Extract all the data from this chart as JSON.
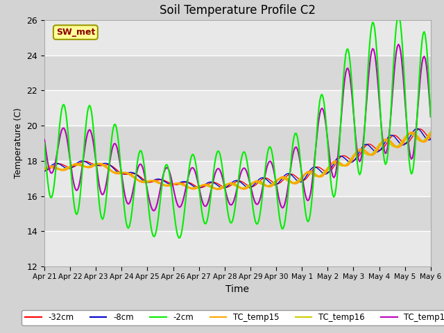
{
  "title": "Soil Temperature Profile C2",
  "xlabel": "Time",
  "ylabel": "Temperature (C)",
  "ylim": [
    12,
    26
  ],
  "yticks": [
    12,
    14,
    16,
    18,
    20,
    22,
    24,
    26
  ],
  "annotation_text": "SW_met",
  "annotation_color": "#8B0000",
  "annotation_bg": "#FFFF99",
  "annotation_border": "#999900",
  "bg_color": "#D3D3D3",
  "plot_bg_light": "#E8E8E8",
  "plot_bg_dark": "#D8D8D8",
  "grid_color": "#FFFFFF",
  "series_colors": {
    "-32cm": "#FF0000",
    "-8cm": "#0000CD",
    "-2cm": "#00EE00",
    "TC_temp15": "#FFA500",
    "TC_temp16": "#CCCC00",
    "TC_temp17": "#BB00BB"
  },
  "xtick_labels": [
    "Apr 21",
    "Apr 22",
    "Apr 23",
    "Apr 24",
    "Apr 25",
    "Apr 26",
    "Apr 27",
    "Apr 28",
    "Apr 29",
    "Apr 30",
    "May 1",
    "May 2",
    "May 3",
    "May 4",
    "May 5",
    "May 6"
  ]
}
